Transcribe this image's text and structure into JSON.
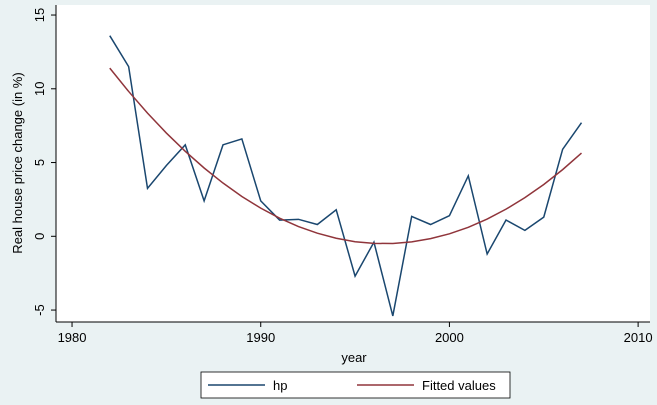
{
  "chart_data": {
    "type": "line",
    "xlabel": "year",
    "ylabel": "Real house price change (in %)",
    "x": [
      1982,
      1983,
      1984,
      1985,
      1986,
      1987,
      1988,
      1989,
      1990,
      1991,
      1992,
      1993,
      1994,
      1995,
      1996,
      1997,
      1998,
      1999,
      2000,
      2001,
      2002,
      2003,
      2004,
      2005,
      2006,
      2007
    ],
    "series": [
      {
        "name": "hp",
        "color": "#1a476f",
        "values": [
          13.6,
          11.5,
          3.25,
          4.8,
          6.2,
          2.4,
          6.2,
          6.6,
          2.4,
          1.1,
          1.15,
          0.8,
          1.8,
          -2.7,
          -0.4,
          -5.4,
          1.35,
          0.8,
          1.4,
          4.1,
          -1.2,
          1.1,
          0.4,
          1.3,
          5.9,
          7.7
        ]
      },
      {
        "name": "Fitted values",
        "color": "#90353b",
        "values": [
          11.4,
          9.82,
          8.35,
          7.0,
          5.76,
          4.63,
          3.61,
          2.7,
          1.91,
          1.23,
          0.66,
          0.21,
          -0.13,
          -0.37,
          -0.48,
          -0.49,
          -0.38,
          -0.16,
          0.17,
          0.61,
          1.17,
          1.84,
          2.62,
          3.51,
          4.52,
          5.64
        ]
      }
    ],
    "xlim": [
      1979.15,
      2010.63
    ],
    "xticks": [
      1980,
      1990,
      2000,
      2010
    ],
    "ylim": [
      -5.81,
      15.68
    ],
    "yticks": [
      -5,
      0,
      5,
      10,
      15
    ],
    "legend": "bottom"
  }
}
